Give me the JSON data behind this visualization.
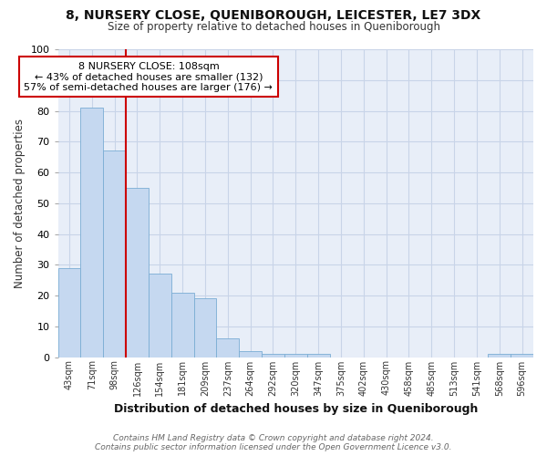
{
  "title1": "8, NURSERY CLOSE, QUENIBOROUGH, LEICESTER, LE7 3DX",
  "title2": "Size of property relative to detached houses in Queniborough",
  "xlabel": "Distribution of detached houses by size in Queniborough",
  "ylabel": "Number of detached properties",
  "categories": [
    "43sqm",
    "71sqm",
    "98sqm",
    "126sqm",
    "154sqm",
    "181sqm",
    "209sqm",
    "237sqm",
    "264sqm",
    "292sqm",
    "320sqm",
    "347sqm",
    "375sqm",
    "402sqm",
    "430sqm",
    "458sqm",
    "485sqm",
    "513sqm",
    "541sqm",
    "568sqm",
    "596sqm"
  ],
  "values": [
    29,
    81,
    67,
    55,
    27,
    21,
    19,
    6,
    2,
    1,
    1,
    1,
    0,
    0,
    0,
    0,
    0,
    0,
    0,
    1,
    1
  ],
  "bar_color": "#c5d8f0",
  "bar_edge_color": "#7aadd4",
  "marker_label": "8 NURSERY CLOSE: 108sqm",
  "annotation_line1": "← 43% of detached houses are smaller (132)",
  "annotation_line2": "57% of semi-detached houses are larger (176) →",
  "annotation_box_color": "#ffffff",
  "annotation_box_edge": "#cc0000",
  "vline_color": "#cc0000",
  "ylim": [
    0,
    100
  ],
  "yticks": [
    0,
    10,
    20,
    30,
    40,
    50,
    60,
    70,
    80,
    90,
    100
  ],
  "footnote1": "Contains HM Land Registry data © Crown copyright and database right 2024.",
  "footnote2": "Contains public sector information licensed under the Open Government Licence v3.0.",
  "bg_color": "#ffffff",
  "plot_bg_color": "#e8eef8",
  "grid_color": "#c8d4e8"
}
